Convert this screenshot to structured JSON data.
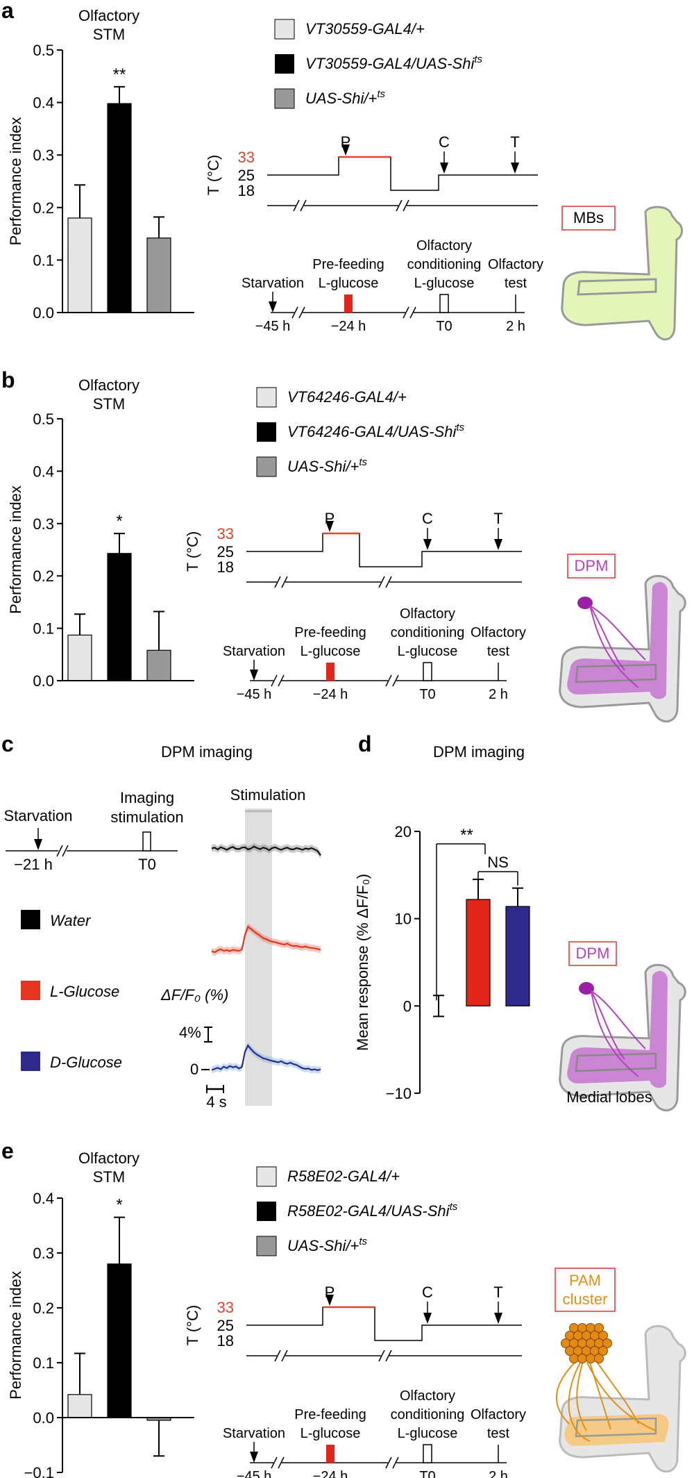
{
  "colors": {
    "bar_control1": "#e6e6e6",
    "bar_experimental": "#000000",
    "bar_control2": "#999999",
    "warm": "#e0452b",
    "trace_water": "#111111",
    "trace_lglucose": "#e3351f",
    "trace_dglucose": "#2e2a8c",
    "dpm": "#b43fbf",
    "mb_fill": "#e3f5b8",
    "pam": "#e0901a"
  },
  "panels": {
    "a": {
      "letter": "a",
      "legend": [
        "VT30559-GAL4/+",
        "VT30559-GAL4/UAS-Shi",
        "UAS-Shi/+"
      ],
      "legend_sup": [
        "",
        "ts",
        "ts"
      ],
      "neuron_label": "MBs"
    },
    "b": {
      "letter": "b",
      "legend": [
        "VT64246-GAL4/+",
        "VT64246-GAL4/UAS-Shi",
        "UAS-Shi/+"
      ],
      "legend_sup": [
        "",
        "ts",
        "ts"
      ],
      "neuron_label": "DPM"
    },
    "c": {
      "letter": "c",
      "title": "DPM imaging",
      "stimulation": "Stimulation",
      "timeline": {
        "starvation": "Starvation",
        "imaging": [
          "Imaging",
          "stimulation"
        ],
        "t1": "−21 h",
        "t2": "T0"
      },
      "legend": [
        "Water",
        "L-Glucose",
        "D-Glucose"
      ],
      "dff_label": "ΔF/F₀ (%)",
      "scale_y": "4%",
      "zero": "0",
      "scale_x": "4 s"
    },
    "d": {
      "letter": "d",
      "neuron_label": "DPM",
      "caption": "Medial lobes"
    },
    "e": {
      "letter": "e",
      "legend": [
        "R58E02-GAL4/+",
        "R58E02-GAL4/UAS-Shi",
        "UAS-Shi/+"
      ],
      "legend_sup": [
        "",
        "ts",
        "ts"
      ],
      "neuron_label": [
        "PAM",
        "cluster"
      ]
    }
  },
  "protocol": {
    "temp_axis": "T (°C)",
    "temps": [
      "33",
      "25",
      "18"
    ],
    "arrows": [
      "P",
      "C",
      "T"
    ],
    "events": [
      [
        "Starvation"
      ],
      [
        "Pre-feeding",
        "L-glucose"
      ],
      [
        "Olfactory",
        "conditioning",
        "L-glucose"
      ],
      [
        "Olfactory",
        "test"
      ]
    ],
    "times": [
      "−45 h",
      "−24 h",
      "T0",
      "2 h"
    ]
  },
  "chart_data": [
    {
      "id": "a",
      "type": "bar",
      "title": "Olfactory STM",
      "ylabel": "Performance index",
      "ylim": [
        0,
        0.5
      ],
      "yticks": [
        0,
        0.1,
        0.2,
        0.3,
        0.4,
        0.5
      ],
      "categories": [
        "VT30559-GAL4/+",
        "VT30559-GAL4/UAS-Shits",
        "UAS-Shits/+"
      ],
      "values": [
        0.18,
        0.398,
        0.142
      ],
      "errors": [
        0.063,
        0.032,
        0.04
      ],
      "annotation": {
        "text": "**",
        "bar": 1
      }
    },
    {
      "id": "b",
      "type": "bar",
      "title": "Olfactory STM",
      "ylabel": "Performance index",
      "ylim": [
        0,
        0.5
      ],
      "yticks": [
        0,
        0.1,
        0.2,
        0.3,
        0.4,
        0.5
      ],
      "categories": [
        "VT64246-GAL4/+",
        "VT64246-GAL4/UAS-Shits",
        "UAS-Shits/+"
      ],
      "values": [
        0.087,
        0.243,
        0.058
      ],
      "errors": [
        0.04,
        0.038,
        0.074
      ],
      "annotation": {
        "text": "*",
        "bar": 1
      }
    },
    {
      "id": "d",
      "type": "bar",
      "title": "DPM imaging",
      "ylabel": "Mean response (% ΔF/F₀)",
      "ylim": [
        -10,
        20
      ],
      "yticks": [
        -10,
        0,
        10,
        20
      ],
      "categories": [
        "Water",
        "L-Glucose",
        "D-Glucose"
      ],
      "values": [
        0,
        12.2,
        11.4
      ],
      "errors": [
        1.2,
        2.3,
        2.1
      ],
      "colors": [
        "#ffffff",
        "#e3261a",
        "#2e2a8c"
      ],
      "significance": [
        {
          "from": 0,
          "to": 1,
          "text": "**"
        },
        {
          "from": 1,
          "to": 2,
          "text": "NS"
        }
      ]
    },
    {
      "id": "e",
      "type": "bar",
      "title": "Olfactory STM",
      "ylabel": "Performance index",
      "ylim": [
        -0.1,
        0.4
      ],
      "yticks": [
        -0.1,
        0,
        0.1,
        0.2,
        0.3,
        0.4
      ],
      "categories": [
        "R58E02-GAL4/+",
        "R58E02-GAL4/UAS-Shits",
        "UAS-Shits/+"
      ],
      "values": [
        0.042,
        0.28,
        -0.005
      ],
      "errors": [
        0.075,
        0.085,
        0.065
      ],
      "annotation": {
        "text": "*",
        "bar": 1
      }
    },
    {
      "id": "c",
      "type": "line",
      "title": "DPM imaging",
      "series": [
        {
          "name": "Water",
          "values": [
            0.1,
            0.3,
            -0.2,
            0.4,
            0.1,
            -0.3,
            0.2,
            0.5,
            0,
            -0.1,
            0.3,
            0.4,
            -0.2,
            0.1,
            0.6,
            0.2,
            -0.1,
            0.3,
            0.1,
            -0.4,
            0.2,
            0.4,
            0,
            -0.3,
            0.1,
            0.3,
            -0.1,
            -0.2,
            0.2,
            0,
            -0.3,
            0.1,
            -0.1,
            0.2,
            -0.2,
            -0.6,
            -1.8
          ]
        },
        {
          "name": "L-Glucose",
          "values": [
            0.1,
            -0.2,
            0.3,
            0.6,
            0.2,
            0.4,
            0.1,
            0.5,
            0.3,
            0.2,
            0.6,
            4.5,
            6.8,
            6.2,
            5.5,
            4.9,
            4.3,
            3.7,
            3.4,
            3.0,
            2.7,
            2.6,
            2.3,
            2.1,
            1.9,
            2.2,
            1.7,
            1.5,
            1.6,
            1.3,
            1.2,
            1.4,
            1.1,
            1.0,
            0.9,
            0.7,
            0.5
          ]
        },
        {
          "name": "D-Glucose",
          "values": [
            -0.1,
            0.2,
            0.5,
            0.1,
            0.8,
            0.4,
            1.0,
            0.6,
            0.9,
            0.3,
            0.7,
            4.9,
            6.6,
            5.6,
            4.7,
            4.1,
            3.6,
            3.1,
            2.9,
            2.6,
            2.4,
            2.2,
            2.0,
            2.3,
            1.8,
            1.6,
            1.9,
            1.5,
            1.3,
            0.8,
            0.4,
            0.2,
            0.3,
            -0.1,
            0.1,
            -0.2,
            0.1
          ]
        }
      ],
      "stimulation_window": [
        10,
        16
      ],
      "scale_bars": {
        "y": "4%",
        "x": "4 s"
      }
    }
  ]
}
